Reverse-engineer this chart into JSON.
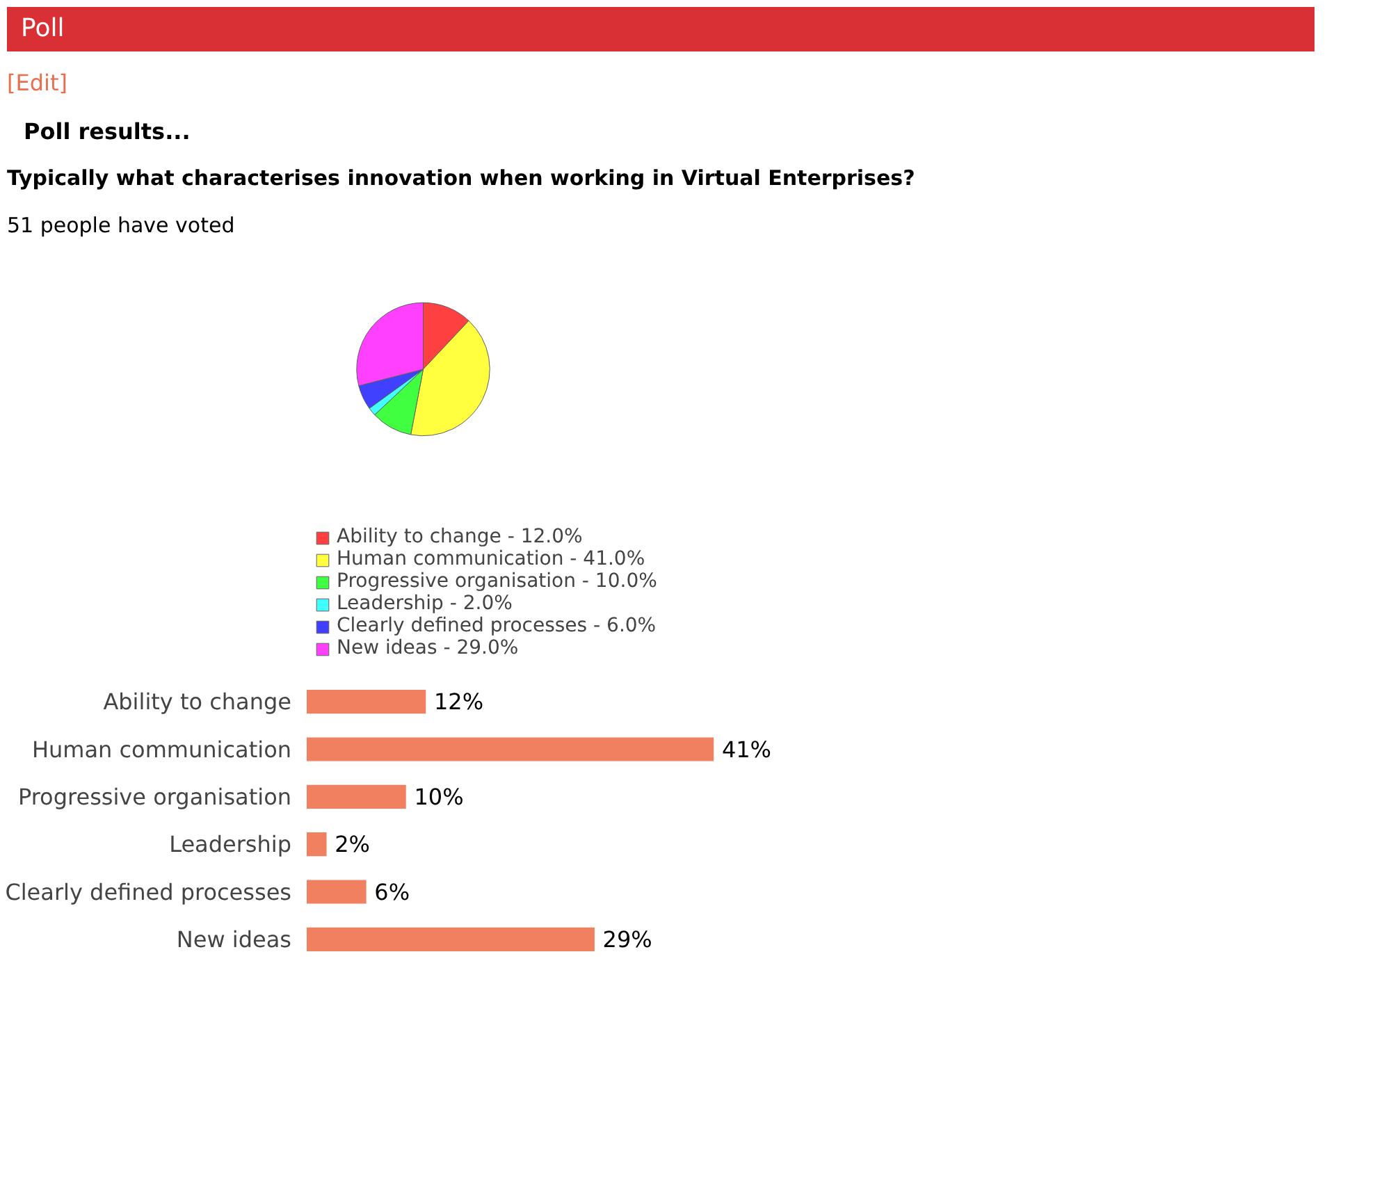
{
  "chart_data": [
    {
      "type": "pie",
      "title": "Typically what characterises innovation when working in Virtual Enterprises?",
      "subtitle": "51 people have voted",
      "annotations": [
        "Poll",
        "[Edit]",
        "Poll results..."
      ],
      "categories": [
        "Ability to change - 12.0%",
        "Human communication - 41.0%",
        "Progressive organisation - 10.0%",
        "Leadership - 2.0%",
        "Clearly defined processes - 6.0%",
        "New ideas - 29.0%"
      ],
      "values": [
        12.0,
        41.0,
        10.0,
        2.0,
        6.0,
        29.0
      ],
      "colors": [
        "#ff4040",
        "#ffff40",
        "#40ff40",
        "#40ffff",
        "#4040ff",
        "#ff40ff"
      ],
      "legend": "bottom"
    },
    {
      "type": "bar",
      "orientation": "horizontal",
      "categories": [
        "Ability to change",
        "Human communication",
        "Progressive organisation",
        "Leadership",
        "Clearly defined processes",
        "New ideas"
      ],
      "values": [
        12,
        41,
        10,
        2,
        6,
        29
      ],
      "value_labels": [
        "12%",
        "41%",
        "10%",
        "2%",
        "6%",
        "29%"
      ],
      "color": "#f08060",
      "tick_labels": "y",
      "grid": false
    }
  ]
}
